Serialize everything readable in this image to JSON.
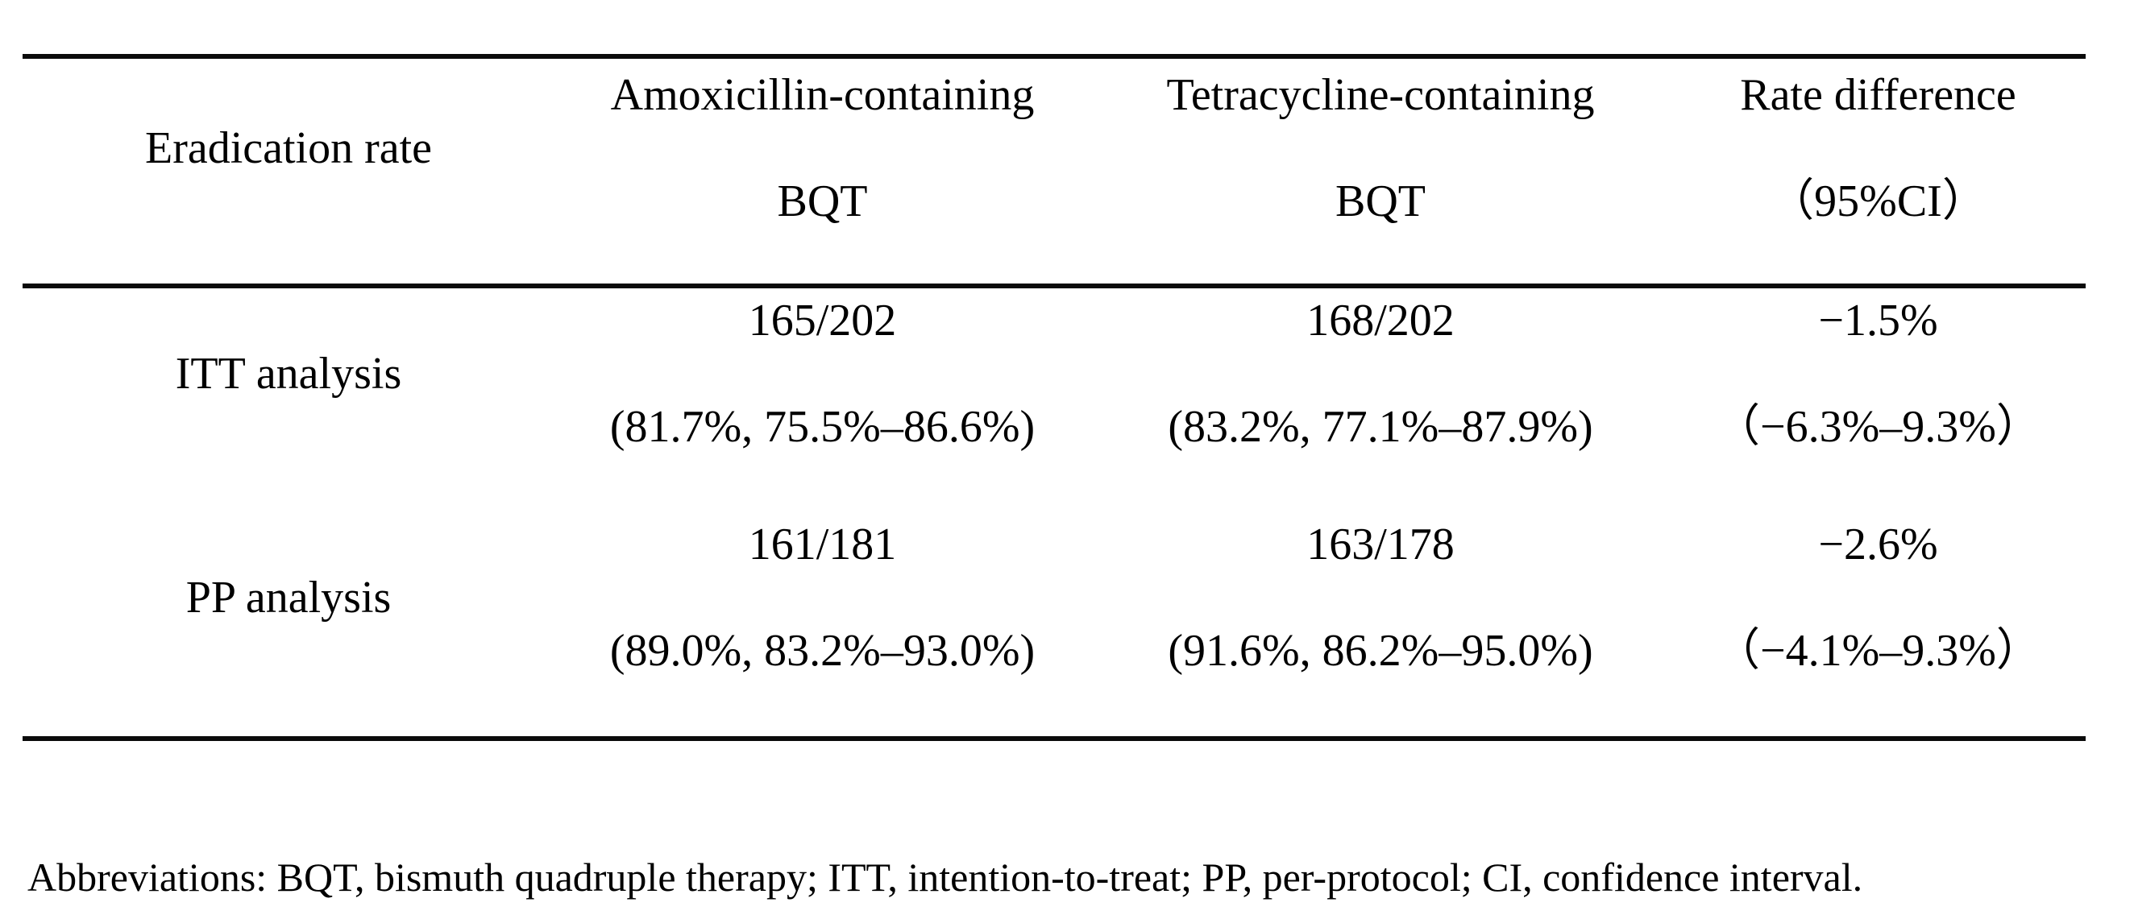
{
  "table": {
    "columns": [
      {
        "header_lines": [
          "Eradication rate"
        ]
      },
      {
        "header_lines": [
          "Amoxicillin-containing",
          "BQT"
        ]
      },
      {
        "header_lines": [
          "Tetracycline-containing",
          "BQT"
        ]
      },
      {
        "header_lines": [
          "Rate difference",
          "（95%CI）"
        ]
      }
    ],
    "rows": [
      {
        "label": "ITT analysis",
        "amoxicillin": [
          "165/202",
          "(81.7%, 75.5%–86.6%)"
        ],
        "tetracycline": [
          "168/202",
          "(83.2%, 77.1%–87.9%)"
        ],
        "rate_difference": [
          "−1.5%",
          "（−6.3%–9.3%）"
        ]
      },
      {
        "label": "PP analysis",
        "amoxicillin": [
          "161/181",
          "(89.0%, 83.2%–93.0%)"
        ],
        "tetracycline": [
          "163/178",
          "(91.6%, 86.2%–95.0%)"
        ],
        "rate_difference": [
          "−2.6%",
          "（−4.1%–9.3%）"
        ]
      }
    ]
  },
  "footnote": "Abbreviations: BQT, bismuth quadruple therapy; ITT, intention-to-treat; PP, per-protocol; CI, confidence interval."
}
